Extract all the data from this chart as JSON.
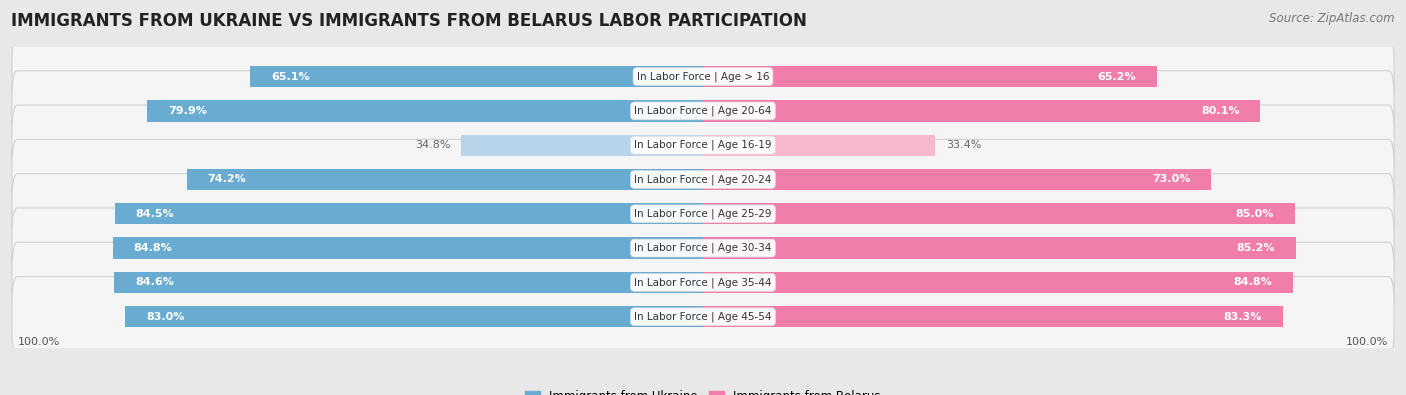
{
  "title": "IMMIGRANTS FROM UKRAINE VS IMMIGRANTS FROM BELARUS LABOR PARTICIPATION",
  "source": "Source: ZipAtlas.com",
  "categories": [
    "In Labor Force | Age > 16",
    "In Labor Force | Age 20-64",
    "In Labor Force | Age 16-19",
    "In Labor Force | Age 20-24",
    "In Labor Force | Age 25-29",
    "In Labor Force | Age 30-34",
    "In Labor Force | Age 35-44",
    "In Labor Force | Age 45-54"
  ],
  "ukraine_values": [
    65.1,
    79.9,
    34.8,
    74.2,
    84.5,
    84.8,
    84.6,
    83.0
  ],
  "belarus_values": [
    65.2,
    80.1,
    33.4,
    73.0,
    85.0,
    85.2,
    84.8,
    83.3
  ],
  "ukraine_color_strong": "#6aabd2",
  "ukraine_color_light": "#b8d4ea",
  "belarus_color_strong": "#f07daa",
  "belarus_color_light": "#f5b8cc",
  "background_color": "#e8e8e8",
  "row_bg_color": "#f5f5f5",
  "bar_height": 0.62,
  "max_value": 100.0,
  "light_threshold": 50.0,
  "legend_ukraine": "Immigrants from Ukraine",
  "legend_belarus": "Immigrants from Belarus",
  "title_fontsize": 12,
  "source_fontsize": 8.5,
  "label_fontsize": 8,
  "category_fontsize": 7.5,
  "axis_label_fontsize": 8
}
